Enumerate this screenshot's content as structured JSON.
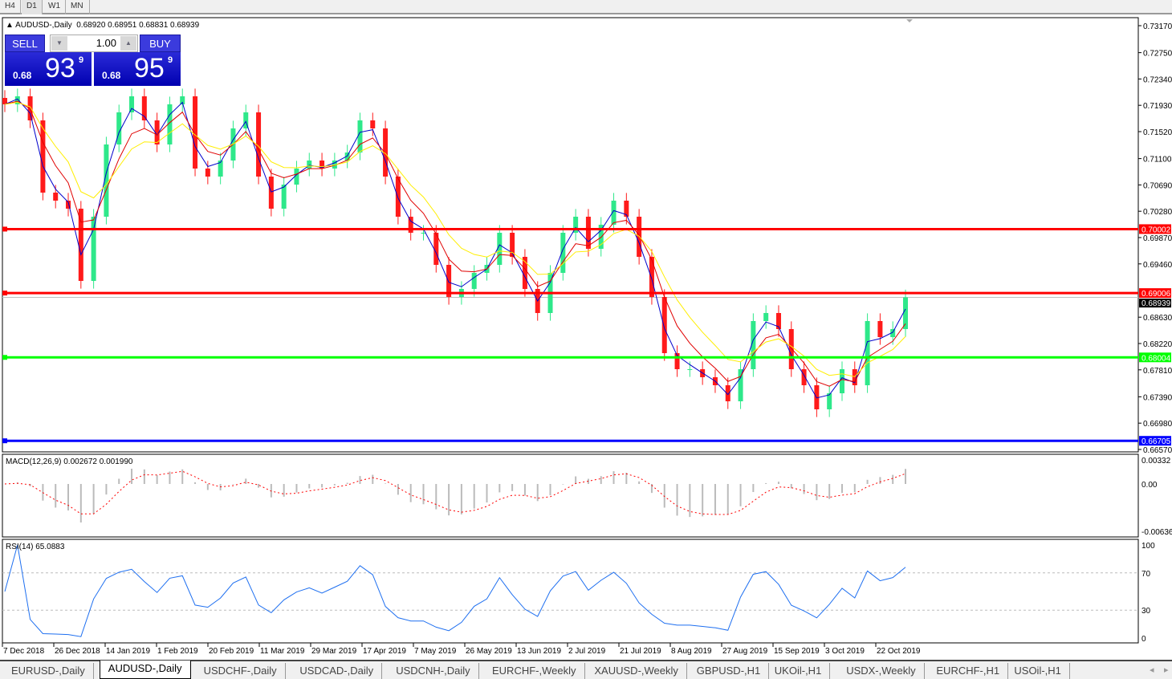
{
  "timeframes": [
    "H4",
    "D1",
    "W1",
    "MN"
  ],
  "active_timeframe": "D1",
  "chart": {
    "title": "AUDUSD-,Daily",
    "ohlc": "0.68920 0.68951 0.68831 0.68939",
    "price_axis": [
      "0.73170",
      "0.72750",
      "0.72340",
      "0.71930",
      "0.71520",
      "0.71100",
      "0.70690",
      "0.70280",
      "0.69870",
      "0.69460",
      "0.68630",
      "0.68220",
      "0.67810",
      "0.67390",
      "0.66980",
      "0.66570"
    ],
    "date_axis": [
      "7 Dec 2018",
      "26 Dec 2018",
      "14 Jan 2019",
      "1 Feb 2019",
      "20 Feb 2019",
      "11 Mar 2019",
      "29 Mar 2019",
      "17 Apr 2019",
      "7 May 2019",
      "26 May 2019",
      "13 Jun 2019",
      "2 Jul 2019",
      "21 Jul 2019",
      "8 Aug 2019",
      "27 Aug 2019",
      "15 Sep 2019",
      "3 Oct 2019",
      "22 Oct 2019"
    ],
    "hlines": [
      {
        "price": 0.70002,
        "label": "0.70002",
        "color": "#ff0000"
      },
      {
        "price": 0.69006,
        "label": "0.69006",
        "color": "#ff0000"
      },
      {
        "price": 0.68004,
        "label": "0.68004",
        "color": "#00ff00"
      },
      {
        "price": 0.66705,
        "label": "0.66705",
        "color": "#0000ff"
      }
    ],
    "current_price": {
      "price": 0.68939,
      "label": "0.68939"
    },
    "colors": {
      "bull": "#2ee88a",
      "bear": "#ff1a1a",
      "ma_fast": "#0000cc",
      "ma_mid": "#e00000",
      "ma_slow": "#ffee00"
    }
  },
  "trade_panel": {
    "sell_label": "SELL",
    "buy_label": "BUY",
    "lots": "1.00",
    "sell_prefix": "0.68",
    "sell_big": "93",
    "sell_sup": "9",
    "buy_prefix": "0.68",
    "buy_big": "95",
    "buy_sup": "9"
  },
  "macd": {
    "label": "MACD(12,26,9) 0.002672 0.001990",
    "axis": [
      "0.00332",
      "0.00",
      "-0.00636"
    ]
  },
  "rsi": {
    "label": "RSI(14) 65.0883",
    "axis": [
      "100",
      "70",
      "30",
      "0"
    ]
  },
  "chart_data": {
    "type": "candlestick",
    "xlim": [
      "7 Dec 2018",
      "31 Oct 2019"
    ],
    "ylim": [
      0.6657,
      0.7317
    ],
    "closes": [
      0.71945,
      0.7207,
      0.71695,
      0.7057,
      0.70445,
      0.7032,
      0.69195,
      0.70195,
      0.7132,
      0.7182,
      0.7207,
      0.71695,
      0.7132,
      0.71945,
      0.7207,
      0.70945,
      0.7082,
      0.7107,
      0.7157,
      0.7182,
      0.7082,
      0.7032,
      0.70695,
      0.70945,
      0.7107,
      0.70945,
      0.7107,
      0.71195,
      0.71695,
      0.7157,
      0.7082,
      0.70195,
      0.69945,
      0.69945,
      0.69445,
      0.68945,
      0.6907,
      0.6932,
      0.69445,
      0.69945,
      0.6957,
      0.6907,
      0.68695,
      0.6932,
      0.69945,
      0.70195,
      0.69695,
      0.7007,
      0.70445,
      0.70195,
      0.6957,
      0.68945,
      0.6807,
      0.6782,
      0.6782,
      0.67695,
      0.6757,
      0.6732,
      0.6782,
      0.6857,
      0.68695,
      0.68445,
      0.6782,
      0.6757,
      0.67195,
      0.67445,
      0.6782,
      0.6757,
      0.6857,
      0.6832,
      0.68445,
      0.68939
    ]
  },
  "symbol_tabs": [
    "EURUSD-,Daily",
    "AUDUSD-,Daily",
    "USDCHF-,Daily",
    "USDCAD-,Daily",
    "USDCNH-,Daily",
    "EURCHF-,Weekly",
    "XAUUSD-,Weekly",
    "GBPUSD-,H1",
    "UKOil-,H1",
    "USDX-,Weekly",
    "EURCHF-,H1",
    "USOil-,H1"
  ],
  "active_tab": "AUDUSD-,Daily"
}
